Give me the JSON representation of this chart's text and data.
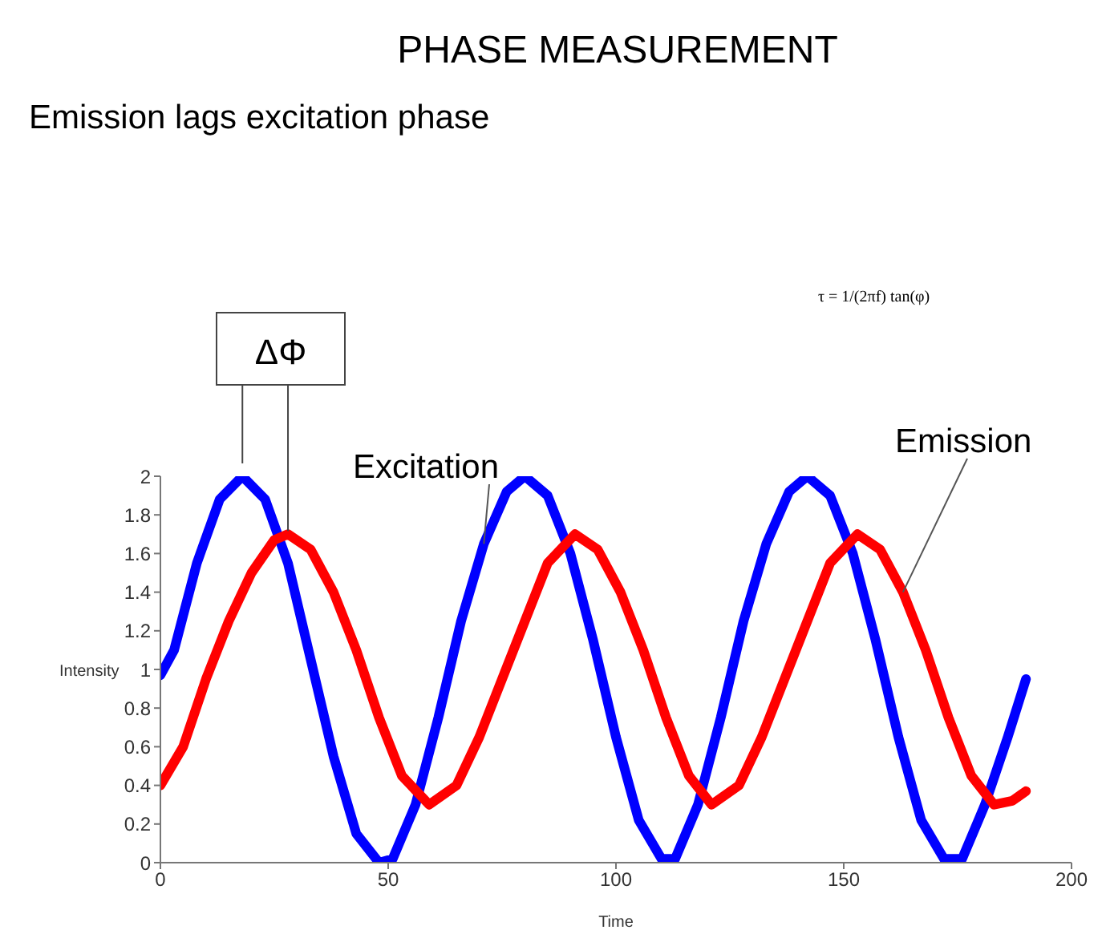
{
  "chart_data": {
    "type": "line",
    "title": "PHASE MEASUREMENT",
    "subtitle": "Emission lags excitation phase",
    "xlabel": "Time",
    "ylabel": "Intensity",
    "annotations": [
      {
        "text": "ΔΦ",
        "x": 18,
        "y": 2
      },
      "τ = 1/(2πf) tan(φ)"
    ],
    "xlim": [
      0,
      200
    ],
    "xticks": [
      0,
      50,
      100,
      150,
      200
    ],
    "ylim": [
      0,
      2
    ],
    "yticks": [
      0,
      0.2,
      0.4,
      0.6,
      0.8,
      1,
      1.2,
      1.4,
      1.6,
      1.8,
      2
    ],
    "grid": false,
    "legend": false,
    "series": [
      {
        "name": "Excitation",
        "color": "#0000ff",
        "x": [
          0,
          3,
          8,
          13,
          18,
          23,
          28,
          33,
          38,
          43,
          48,
          51,
          56,
          61,
          66,
          71,
          76,
          80,
          85,
          90,
          95,
          100,
          105,
          110,
          113,
          118,
          123,
          128,
          133,
          138,
          142,
          147,
          152,
          157,
          162,
          167,
          172,
          176,
          181,
          186,
          190
        ],
        "values": [
          0.97,
          1.1,
          1.55,
          1.88,
          2.0,
          1.88,
          1.55,
          1.05,
          0.55,
          0.15,
          0.0,
          0.02,
          0.3,
          0.75,
          1.25,
          1.65,
          1.92,
          2.0,
          1.9,
          1.6,
          1.15,
          0.65,
          0.22,
          0.02,
          0.02,
          0.3,
          0.75,
          1.25,
          1.65,
          1.92,
          2.0,
          1.9,
          1.6,
          1.15,
          0.65,
          0.22,
          0.02,
          0.02,
          0.3,
          0.65,
          0.95
        ]
      },
      {
        "name": "Emission",
        "color": "#ff0000",
        "x": [
          0,
          5,
          10,
          15,
          20,
          25,
          28,
          33,
          38,
          43,
          48,
          53,
          59,
          65,
          70,
          75,
          80,
          85,
          91,
          96,
          101,
          106,
          111,
          116,
          121,
          127,
          132,
          137,
          142,
          147,
          153,
          158,
          163,
          168,
          173,
          178,
          183,
          187,
          190
        ],
        "values": [
          0.4,
          0.6,
          0.95,
          1.25,
          1.5,
          1.67,
          1.7,
          1.62,
          1.4,
          1.1,
          0.75,
          0.45,
          0.3,
          0.4,
          0.65,
          0.95,
          1.25,
          1.55,
          1.7,
          1.62,
          1.4,
          1.1,
          0.75,
          0.45,
          0.3,
          0.4,
          0.65,
          0.95,
          1.25,
          1.55,
          1.7,
          1.62,
          1.4,
          1.1,
          0.75,
          0.45,
          0.3,
          0.32,
          0.37
        ]
      }
    ]
  }
}
